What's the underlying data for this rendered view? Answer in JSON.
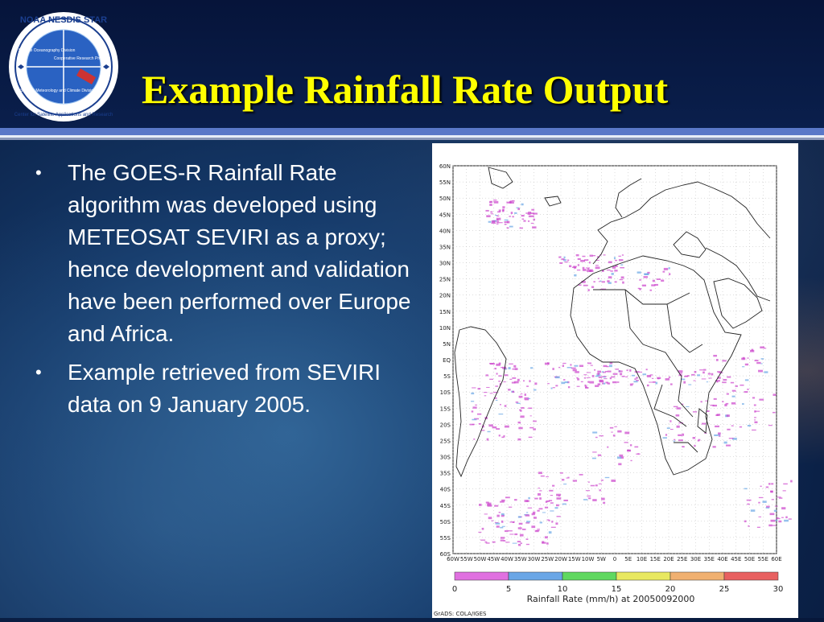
{
  "slide": {
    "title": "Example Rainfall Rate Output",
    "bullets": [
      "The GOES-R Rainfall Rate algorithm was developed using METEOSAT SEVIRI as a proxy; hence development and validation have been performed over Europe and Africa.",
      "Example retrieved from SEVIRI data on 9 January 2005."
    ]
  },
  "logo": {
    "ring_text": "NOAA NESDIS STAR",
    "ring_text_bottom": "Center for Satellite Applications and Research",
    "quadrants": [
      "Satellite Oceanography Division",
      "Cooperative Research Program",
      "Satellite Meteorology and Climate Division"
    ]
  },
  "figure": {
    "lat_labels": [
      "60N",
      "55N",
      "50N",
      "45N",
      "40N",
      "35N",
      "30N",
      "25N",
      "20N",
      "15N",
      "10N",
      "5N",
      "EQ",
      "5S",
      "10S",
      "15S",
      "20S",
      "25S",
      "30S",
      "35S",
      "40S",
      "45S",
      "50S",
      "55S",
      "60S"
    ],
    "lon_labels": [
      "60W",
      "55W",
      "50W",
      "45W",
      "40W",
      "35W",
      "30W",
      "25W",
      "20W",
      "15W",
      "10W",
      "5W",
      "0",
      "5E",
      "10E",
      "15E",
      "20E",
      "25E",
      "30E",
      "35E",
      "40E",
      "45E",
      "50E",
      "55E",
      "60E"
    ],
    "colorbar_ticks": [
      "0",
      "5",
      "10",
      "15",
      "20",
      "25",
      "30"
    ],
    "colorbar_colors": [
      "#e070e0",
      "#6aa6e6",
      "#60d860",
      "#e8e860",
      "#f0b070",
      "#e86060"
    ],
    "caption": "Rainfall Rate (mm/h) at 20050092000",
    "credit": "GrADS: COLA/IGES",
    "accent": "#cc44cc"
  }
}
